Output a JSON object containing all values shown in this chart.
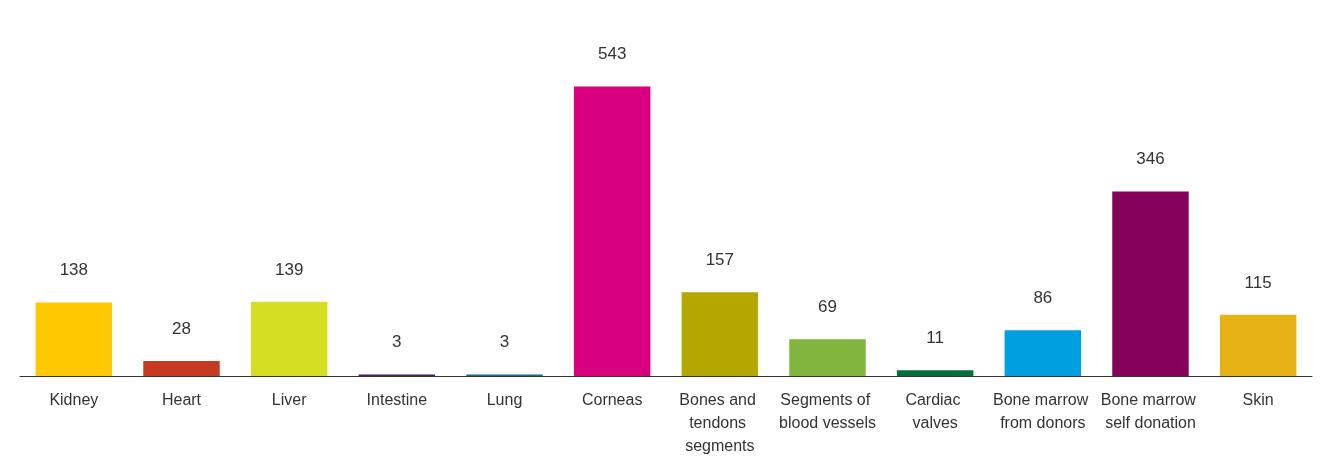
{
  "chart_data": {
    "type": "bar",
    "categories": [
      "Kidney",
      "Heart",
      "Liver",
      "Intestine",
      "Lung",
      "Corneas",
      "Bones and tendons segments",
      "Segments of blood vessels",
      "Cardiac valves",
      "Bone marrow from donors",
      "Bone marrow self donation",
      "Skin"
    ],
    "values": [
      138,
      28,
      139,
      3,
      3,
      543,
      157,
      69,
      11,
      86,
      346,
      115
    ],
    "colors": [
      "#ffc800",
      "#c53a21",
      "#d5de22",
      "#4a1b6b",
      "#0e6e99",
      "#d8007f",
      "#b4a800",
      "#80b63d",
      "#00703c",
      "#009fe0",
      "#84005b",
      "#e7b213"
    ],
    "data_labels": true
  }
}
